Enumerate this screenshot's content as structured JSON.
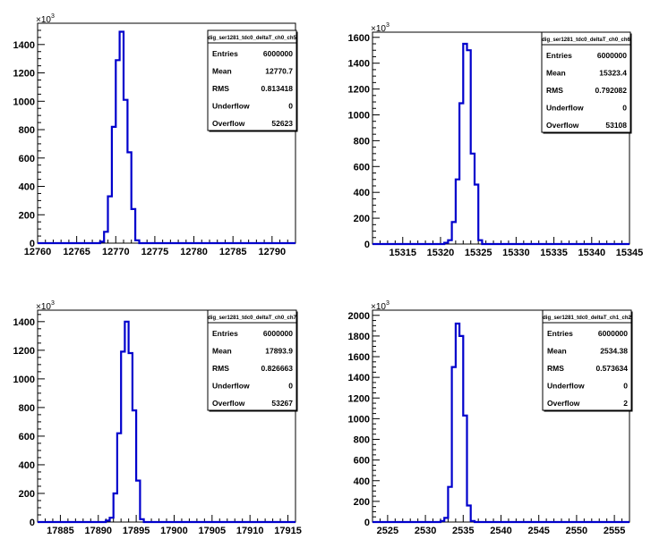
{
  "colors": {
    "histogram": "#0000cc",
    "axis": "#000000",
    "background": "#ffffff"
  },
  "stats_labels": [
    "Entries",
    "Mean",
    "RMS",
    "Underflow",
    "Overflow"
  ],
  "chart_data": [
    {
      "type": "histogram",
      "title": "dig_ser1281_tdc0_deltaT_ch0_ch5",
      "y_exponent_label": "×10",
      "y_exponent_power": "3",
      "xlim": [
        12760,
        12793
      ],
      "ylim": [
        0,
        1550
      ],
      "x_ticks": [
        12760,
        12765,
        12770,
        12775,
        12780,
        12785,
        12790
      ],
      "y_ticks": [
        0,
        200,
        400,
        600,
        800,
        1000,
        1200,
        1400
      ],
      "bin_width": 0.5,
      "bins_x": [
        12768.5,
        12769,
        12769.5,
        12770,
        12770.5,
        12771,
        12771.5,
        12772,
        12772.5
      ],
      "bins_y": [
        10,
        80,
        330,
        820,
        1290,
        1490,
        1010,
        640,
        240,
        20
      ],
      "stats": {
        "entries": "6000000",
        "mean": "12770.7",
        "rms": "0.813418",
        "underflow": "0",
        "overflow": "52623"
      }
    },
    {
      "type": "histogram",
      "title": "dig_ser1281_tdc0_deltaT_ch0_ch6",
      "y_exponent_label": "×10",
      "y_exponent_power": "3",
      "xlim": [
        15311,
        15345
      ],
      "ylim": [
        0,
        1640
      ],
      "x_ticks": [
        15315,
        15320,
        15325,
        15330,
        15335,
        15340,
        15345
      ],
      "y_ticks": [
        0,
        200,
        400,
        600,
        800,
        1000,
        1200,
        1400,
        1600
      ],
      "bin_width": 0.5,
      "bins_x": [
        15321,
        15321.5,
        15322,
        15322.5,
        15323,
        15323.5,
        15324,
        15324.5,
        15325
      ],
      "bins_y": [
        10,
        30,
        170,
        500,
        1090,
        1550,
        1500,
        700,
        460,
        30
      ],
      "stats": {
        "entries": "6000000",
        "mean": "15323.4",
        "rms": "0.792082",
        "underflow": "0",
        "overflow": "53108"
      }
    },
    {
      "type": "histogram",
      "title": "dig_ser1281_tdc0_deltaT_ch0_ch7",
      "y_exponent_label": "×10",
      "y_exponent_power": "3",
      "xlim": [
        17882,
        17916
      ],
      "ylim": [
        0,
        1480
      ],
      "x_ticks": [
        17885,
        17890,
        17895,
        17900,
        17905,
        17910,
        17915
      ],
      "y_ticks": [
        0,
        200,
        400,
        600,
        800,
        1000,
        1200,
        1400
      ],
      "bin_width": 0.5,
      "bins_x": [
        17891.5,
        17892,
        17892.5,
        17893,
        17893.5,
        17894,
        17894.5,
        17895,
        17895.5
      ],
      "bins_y": [
        10,
        30,
        200,
        620,
        1190,
        1400,
        1180,
        780,
        290,
        20
      ],
      "stats": {
        "entries": "6000000",
        "mean": "17893.9",
        "rms": "0.826663",
        "underflow": "0",
        "overflow": "53267"
      }
    },
    {
      "type": "histogram",
      "title": "dig_ser1281_tdc0_deltaT_ch1_ch2",
      "y_exponent_label": "×10",
      "y_exponent_power": "3",
      "xlim": [
        2523,
        2557
      ],
      "ylim": [
        0,
        2050
      ],
      "x_ticks": [
        2525,
        2530,
        2535,
        2540,
        2545,
        2550,
        2555
      ],
      "y_ticks": [
        0,
        200,
        400,
        600,
        800,
        1000,
        1200,
        1400,
        1600,
        1800,
        2000
      ],
      "bin_width": 0.5,
      "bins_x": [
        2532.5,
        2533,
        2533.5,
        2534,
        2534.5,
        2535,
        2535.5,
        2536
      ],
      "bins_y": [
        10,
        40,
        340,
        1500,
        1920,
        1800,
        1030,
        160,
        10
      ],
      "stats": {
        "entries": "6000000",
        "mean": "2534.38",
        "rms": "0.573634",
        "underflow": "0",
        "overflow": "2"
      }
    }
  ]
}
